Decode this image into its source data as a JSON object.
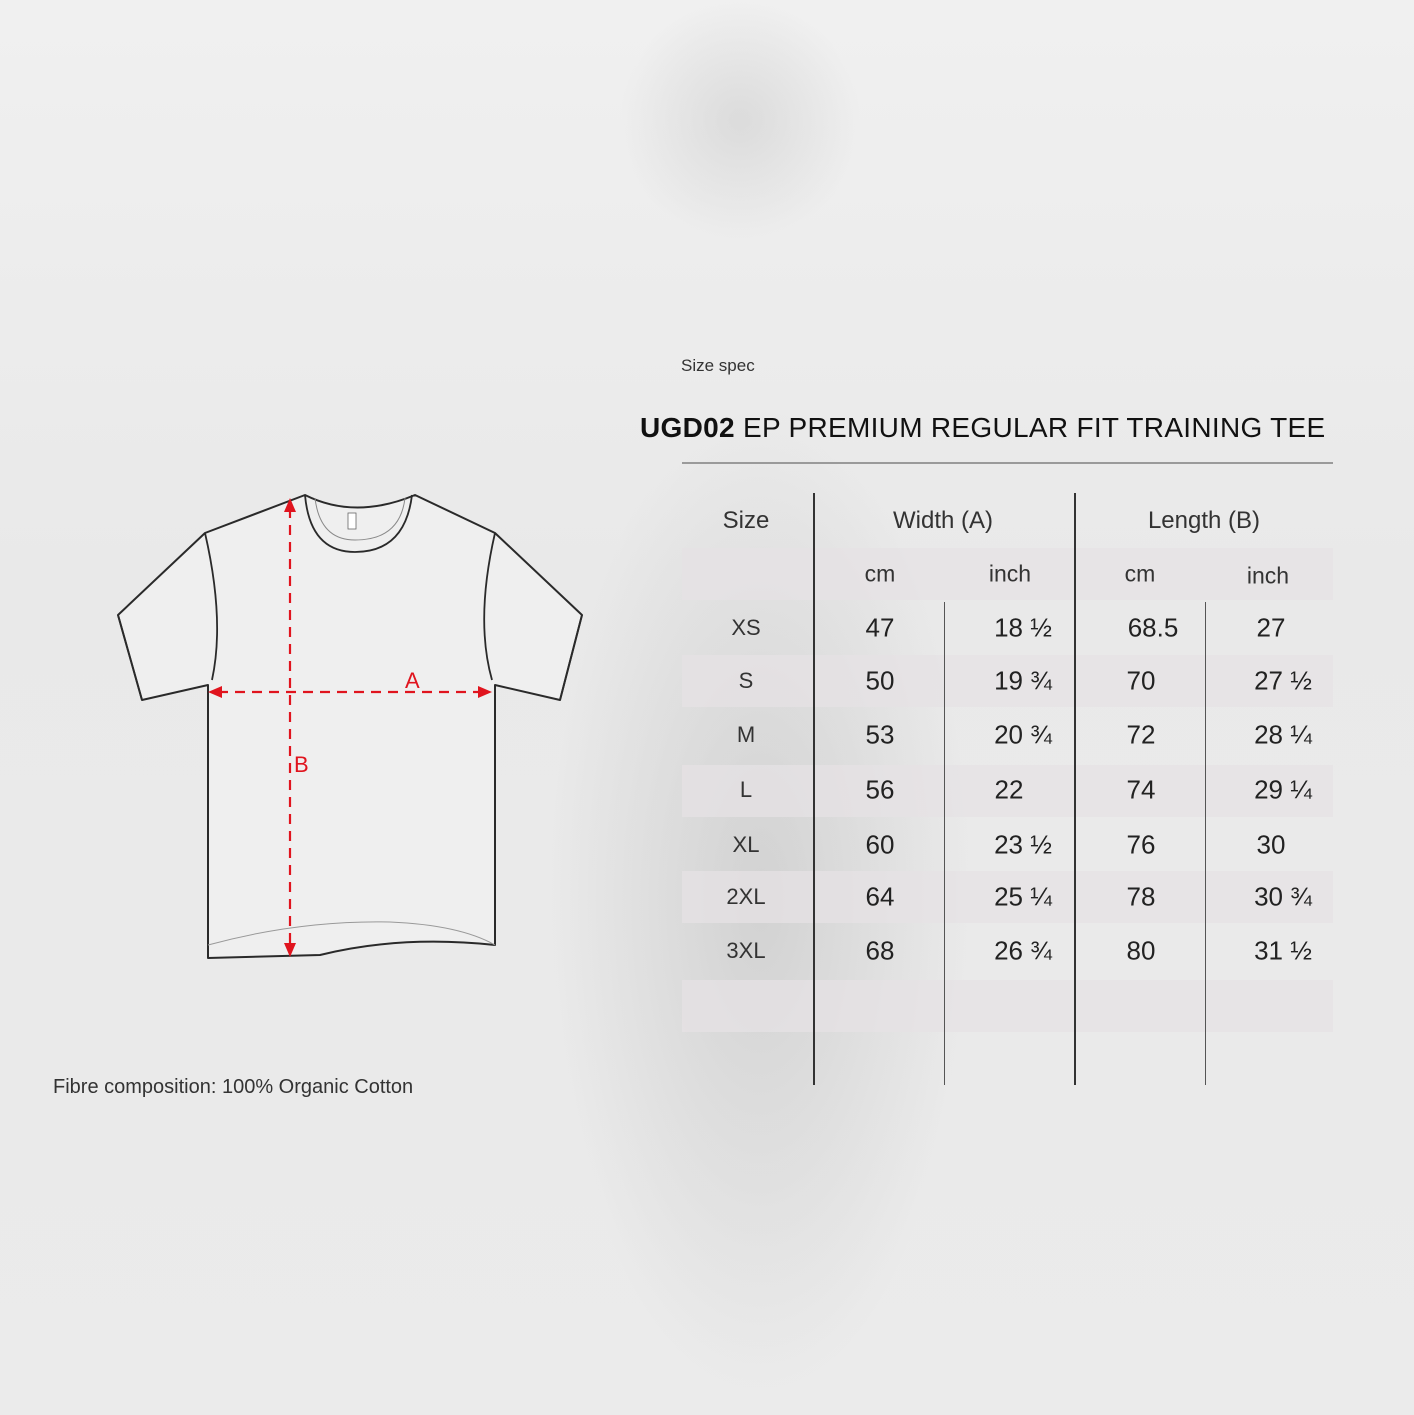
{
  "subtitle": "Size spec",
  "title": {
    "code": "UGD02",
    "name": "EP PREMIUM REGULAR FIT TRAINING TEE"
  },
  "diagram": {
    "width_label": "A",
    "length_label": "B",
    "arrow_color": "#e0141e"
  },
  "table": {
    "headers": {
      "size": "Size",
      "width": "Width (A)",
      "length": "Length (B)"
    },
    "units": [
      "cm",
      "inch",
      "cm",
      "inch"
    ],
    "rows": [
      {
        "size": "XS",
        "width_cm": "47",
        "width_inch": "18 ½",
        "length_cm": "68.5",
        "length_inch": "27"
      },
      {
        "size": "S",
        "width_cm": "50",
        "width_inch": "19 ¾",
        "length_cm": "70",
        "length_inch": "27 ½"
      },
      {
        "size": "M",
        "width_cm": "53",
        "width_inch": "20 ¾",
        "length_cm": "72",
        "length_inch": "28 ¼"
      },
      {
        "size": "L",
        "width_cm": "56",
        "width_inch": "22",
        "length_cm": "74",
        "length_inch": "29 ¼"
      },
      {
        "size": "XL",
        "width_cm": "60",
        "width_inch": "23 ½",
        "length_cm": "76",
        "length_inch": "30"
      },
      {
        "size": "2XL",
        "width_cm": "64",
        "width_inch": "25 ¼",
        "length_cm": "78",
        "length_inch": "30 ¾"
      },
      {
        "size": "3XL",
        "width_cm": "68",
        "width_inch": "26 ¾",
        "length_cm": "80",
        "length_inch": "31 ½"
      }
    ]
  },
  "fibre": "Fibre composition: 100% Organic Cotton"
}
